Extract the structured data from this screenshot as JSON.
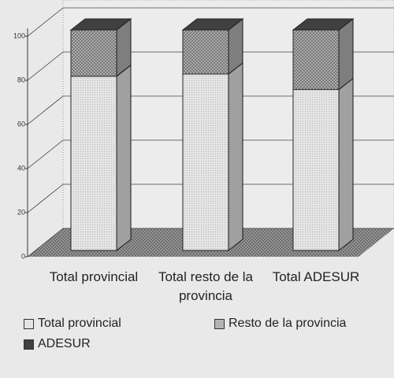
{
  "chart_data": {
    "type": "bar3d_stacked",
    "categories": [
      "Total provincial",
      "Total resto de la provincia",
      "Total ADESUR"
    ],
    "series": [
      {
        "name": "Total provincial",
        "color": "#e4e4e4",
        "values": [
          79,
          80,
          73
        ]
      },
      {
        "name": "Resto de la provincia",
        "color": "#b4b4b4",
        "values": [
          21,
          20,
          27
        ]
      },
      {
        "name": "ADESUR",
        "color": "#404040",
        "values": [
          0,
          0,
          0
        ]
      }
    ],
    "ylim": [
      0,
      100
    ],
    "yticks": [
      0,
      20,
      40,
      60,
      80,
      100
    ],
    "grid": true,
    "legend": "bottom"
  }
}
